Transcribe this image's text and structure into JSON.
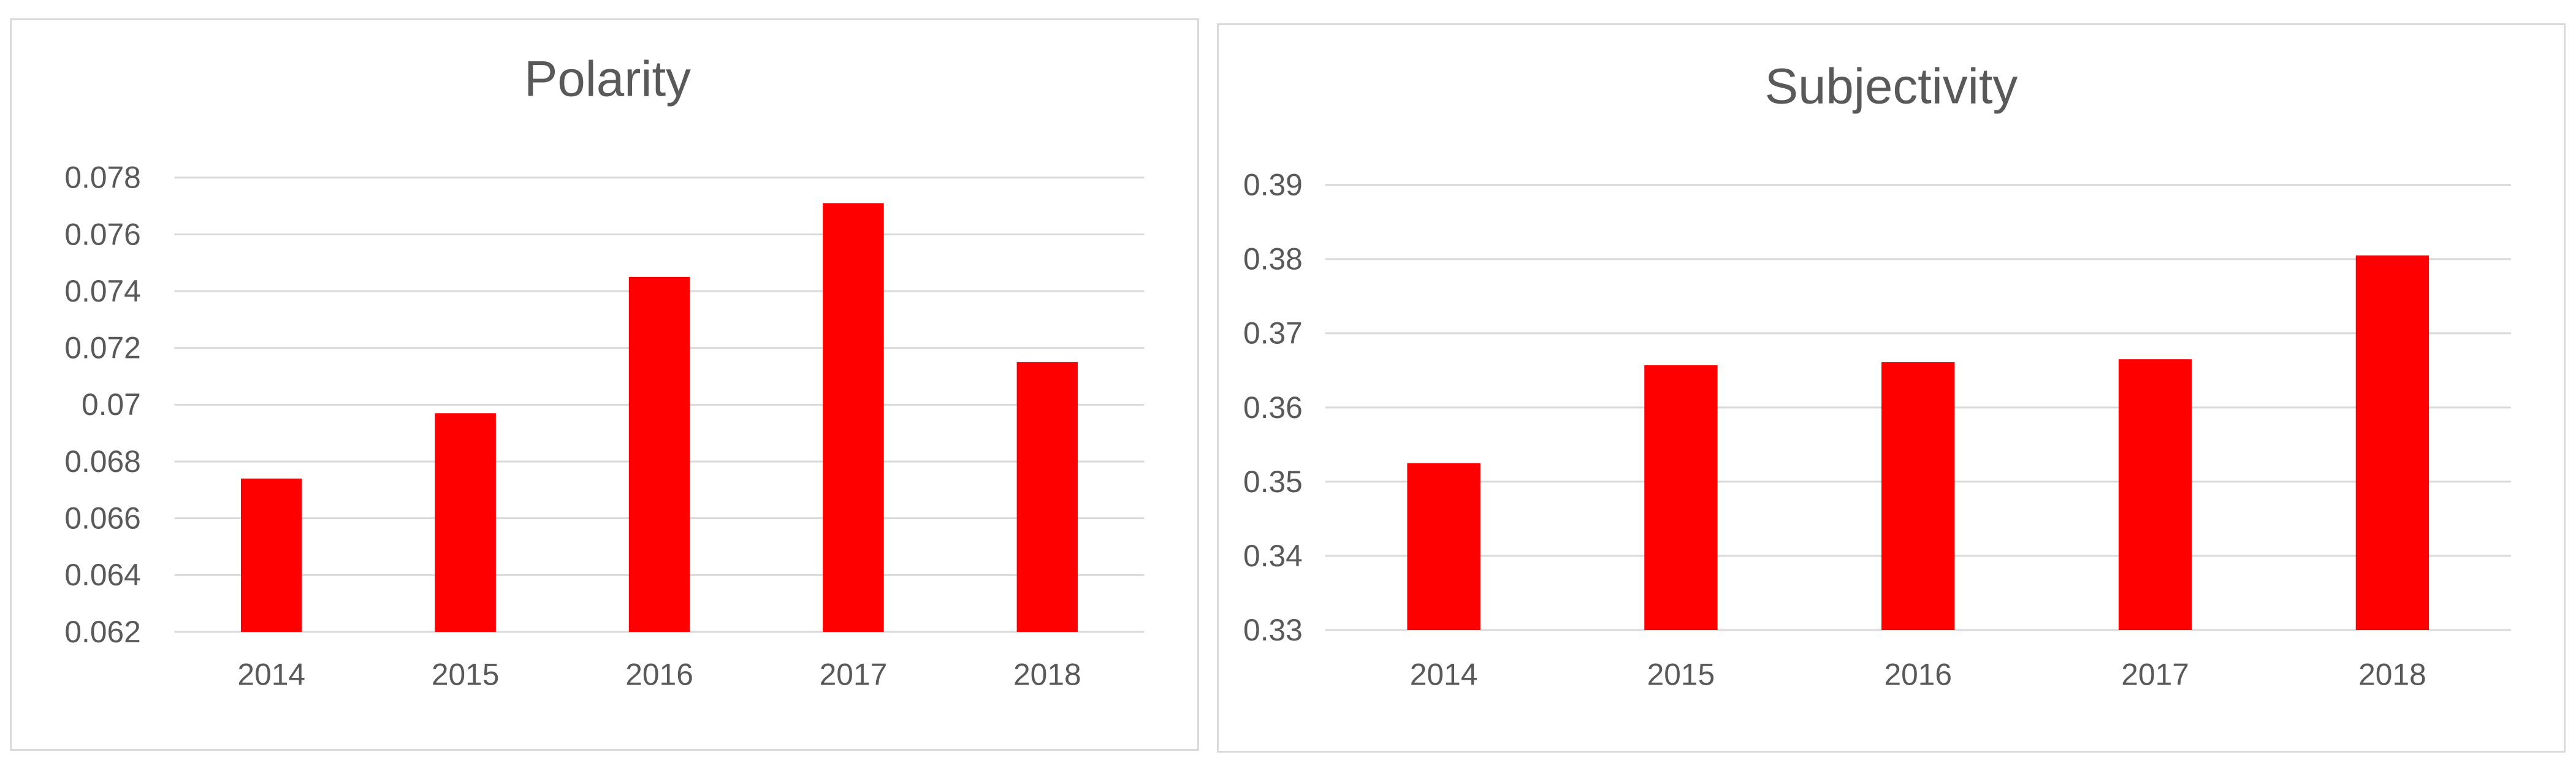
{
  "chart_data": [
    {
      "type": "bar",
      "title": "Polarity",
      "xlabel": "",
      "ylabel": "",
      "categories": [
        "2014",
        "2015",
        "2016",
        "2017",
        "2018"
      ],
      "values": [
        0.0674,
        0.0697,
        0.0745,
        0.0771,
        0.0715
      ],
      "ylim": [
        0.062,
        0.078
      ],
      "yticks": [
        "0.062",
        "0.064",
        "0.066",
        "0.068",
        "0.07",
        "0.072",
        "0.074",
        "0.076",
        "0.078"
      ],
      "bar_color": "#ff0000",
      "grid": true,
      "legend": "none"
    },
    {
      "type": "bar",
      "title": "Subjectivity",
      "xlabel": "",
      "ylabel": "",
      "categories": [
        "2014",
        "2015",
        "2016",
        "2017",
        "2018"
      ],
      "values": [
        0.3525,
        0.3657,
        0.3661,
        0.3665,
        0.3805
      ],
      "ylim": [
        0.33,
        0.39
      ],
      "yticks": [
        "0.33",
        "0.34",
        "0.35",
        "0.36",
        "0.37",
        "0.38",
        "0.39"
      ],
      "bar_color": "#ff0000",
      "grid": true,
      "legend": "none"
    }
  ]
}
